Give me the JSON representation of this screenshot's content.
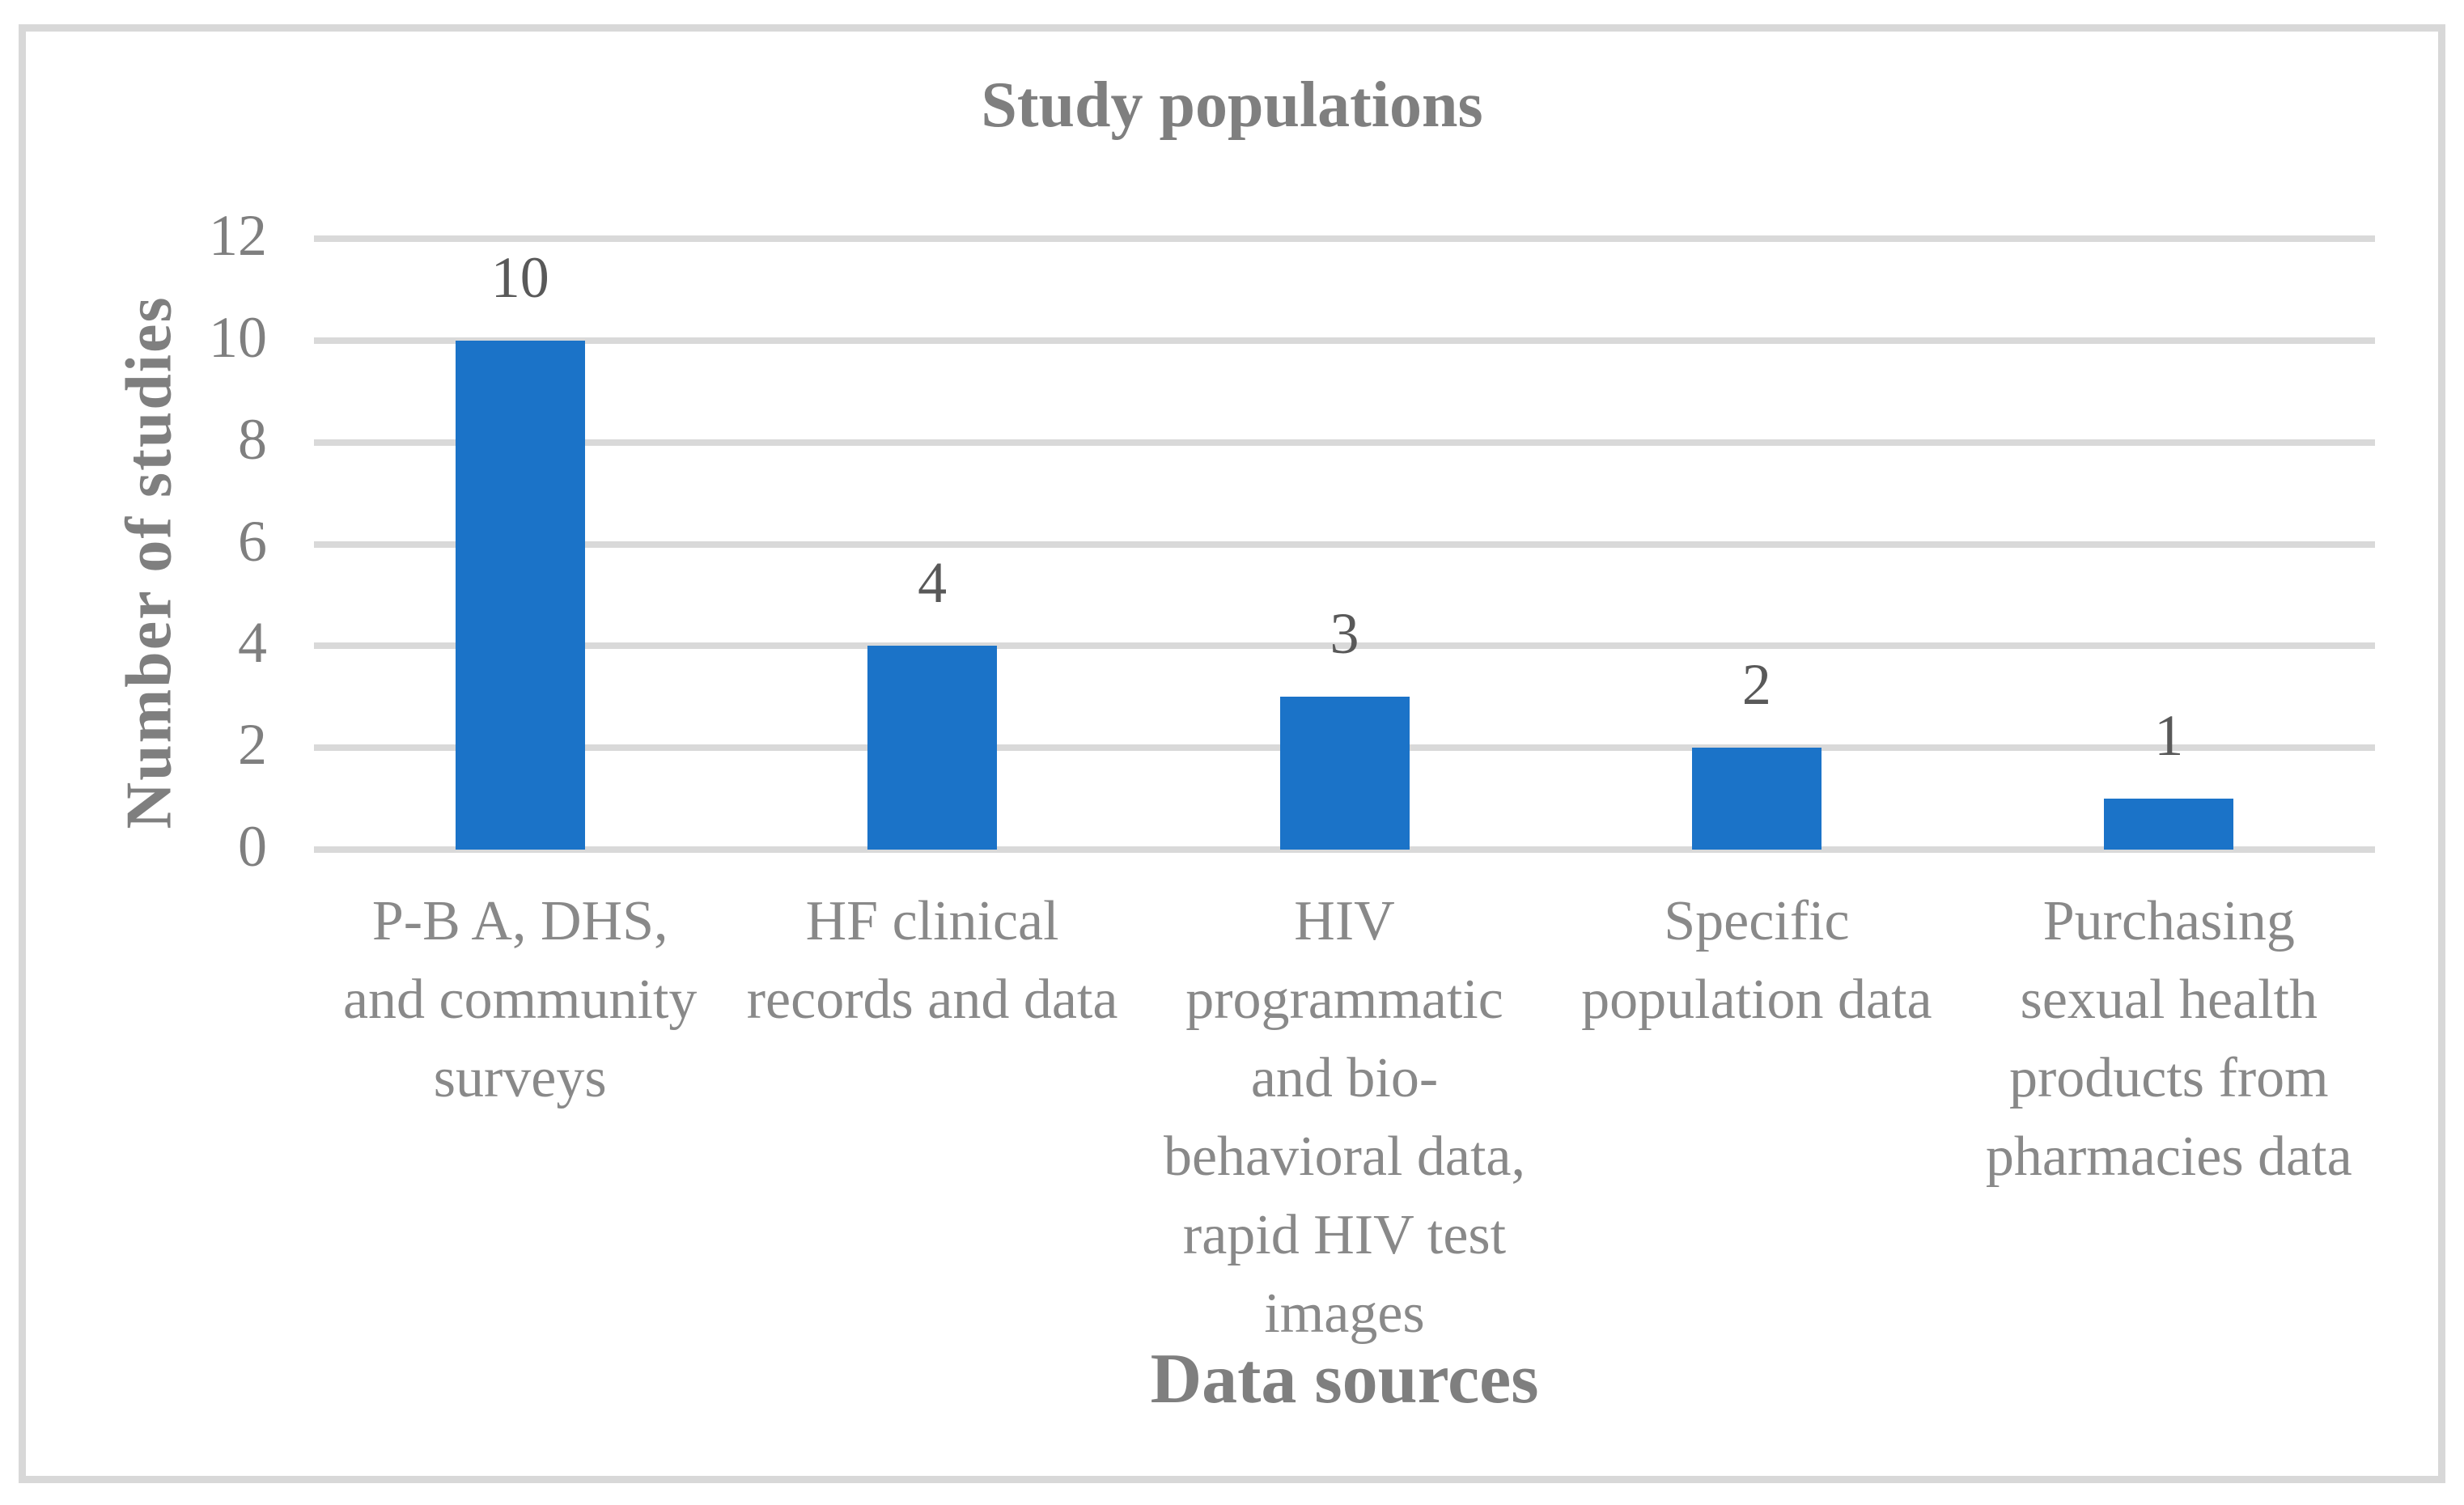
{
  "figure": {
    "background_color": "#FFFFFF",
    "border_color": "#D8D8D8"
  },
  "chart_data": {
    "type": "bar",
    "title": "Study populations",
    "xlabel": "Data sources",
    "ylabel": "Number of studies",
    "categories": [
      "P-B A, DHS,\nand community\nsurveys",
      "HF clinical\nrecords and data",
      "HIV\nprogrammatic\nand bio-\nbehavioral data,\nrapid HIV test\nimages",
      "Specific\npopulation data",
      "Purchasing\nsexual health\nproducts from\npharmacies data"
    ],
    "values": [
      10,
      4,
      3,
      2,
      1
    ],
    "data_labels": [
      "10",
      "4",
      "3",
      "2",
      "1"
    ],
    "ylim": [
      0,
      12
    ],
    "yticks": [
      0,
      2,
      4,
      6,
      8,
      10,
      12
    ],
    "grid": "horizontal",
    "legend": "none",
    "bar_color": "#1B73C8",
    "gridline_color": "#D9D9D9",
    "title_color": "#7F7F7F",
    "axis_title_color": "#7F7F7F",
    "tick_label_color": "#7F7F7F",
    "category_label_color": "#898989",
    "data_label_color": "#595959"
  }
}
